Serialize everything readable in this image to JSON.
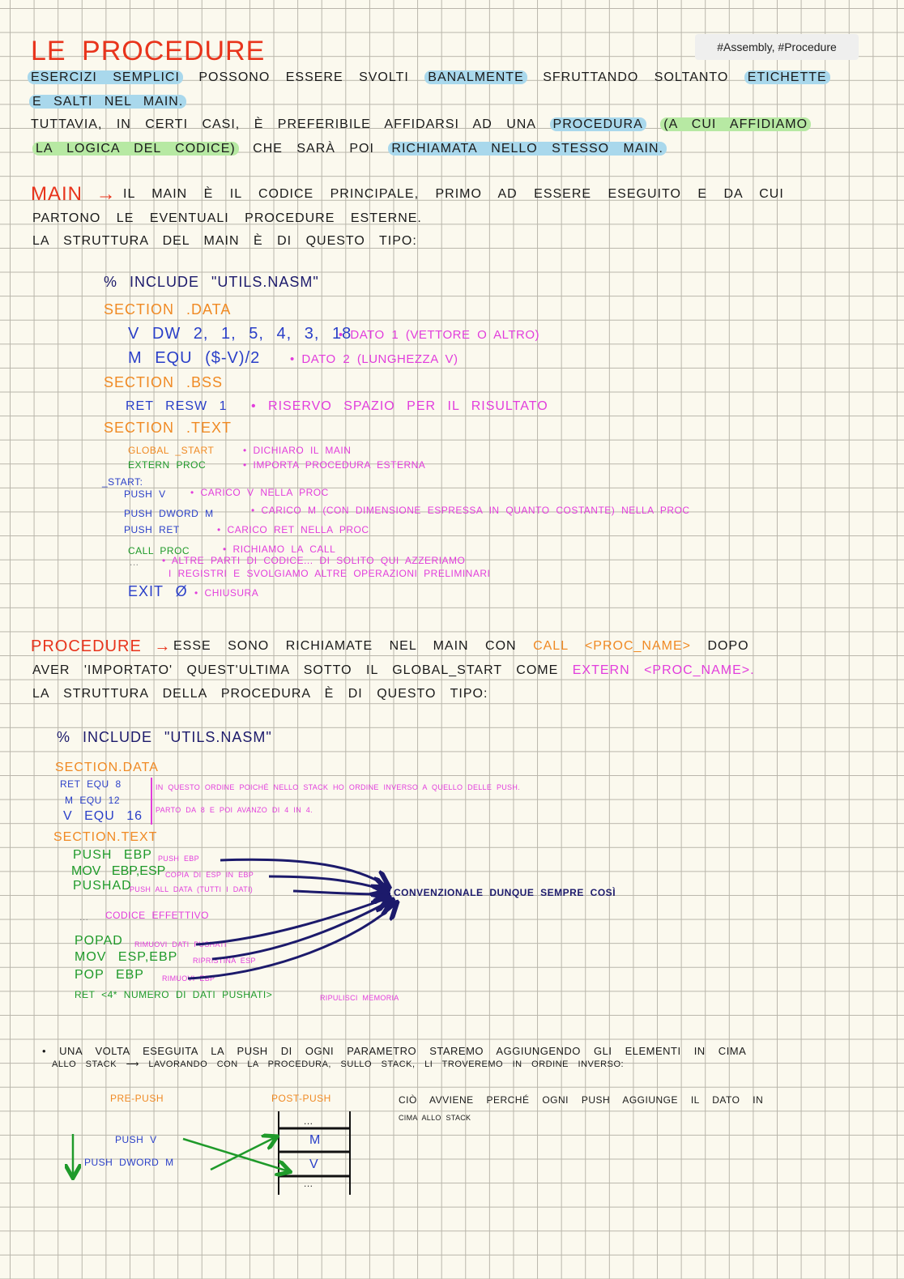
{
  "title": "LE PROCEDURE",
  "tags": "#Assembly, #Procedure",
  "intro": {
    "l1": {
      "a": "Esercizi semplici",
      "b": "possono essere svolti",
      "c": "banalmente",
      "d": "sfruttando soltanto",
      "e": "etichette"
    },
    "l2": "e salti nel main.",
    "l3": {
      "a": "Tuttavia, in certi casi, è preferibile affidarsi ad una",
      "b": "procedura",
      "c": "(a cui affidiamo"
    },
    "l4": {
      "a": "la logica del codice)",
      "b": "che sarà poi",
      "c": "richiamata nello stesso main."
    }
  },
  "main_section": {
    "heading": "MAIN →",
    "l1": "il main è il codice principale, primo ad essere eseguito e da cui",
    "l2": "partono le eventuali procedure esterne.",
    "l3": "la struttura del main è di questo tipo:",
    "code": {
      "include": "% include \"utils.nasm\"",
      "sec_data": "section .data",
      "v_dw": "v dw 2, 1, 5, 4, 3, 18",
      "v_dw_note": "• dato 1 (vettore o altro)",
      "m_equ": "m equ ($-v)/2",
      "m_equ_note": "• dato 2 (lunghezza v)",
      "sec_bss": "section .bss",
      "ret_resw": "ret resw 1",
      "ret_resw_note": "• riservo spazio per il risultato",
      "sec_text": "section .text",
      "global": "global _start",
      "global_note": "• dichiaro il main",
      "extern": "extern proc",
      "extern_note": "• importa procedura esterna",
      "start": "_start:",
      "push_v": "push v",
      "push_v_note": "• carico v nella proc",
      "push_m": "push dword m",
      "push_m_note": "• carico m (con dimensione espressa in quanto costante) nella proc",
      "push_ret": "push ret",
      "push_ret_note": "• carico ret nella proc",
      "call": "call proc",
      "call_note": "• richiamo la call",
      "dots": "...",
      "dots_note1": "• altre parti di codice... di solito qui azzeriamo",
      "dots_note2": "i registri e svolgiamo altre operazioni preliminari",
      "exit": "exit ø",
      "exit_note": "• chiusura"
    }
  },
  "proc_section": {
    "heading": "PROCEDURE →",
    "l1a": "esse sono richiamate nel main con",
    "l1b": "call <proc_name>",
    "l1c": "dopo",
    "l2a": "aver 'importato' quest'ultima sotto il global_start come",
    "l2b": "extern <proc_name>.",
    "l3": "la struttura della procedura è di questo tipo:",
    "code": {
      "include": "% include \"utils.nasm\"",
      "sec_data": "section.data",
      "ret_equ": "ret equ 8",
      "m_equ": "m equ 12",
      "v_equ": "v equ 16",
      "note1": "in questo ordine poiché nello stack ho ordine inverso a quello delle push.",
      "note2": "parto da 8 e poi avanzo di 4 in 4.",
      "sec_text": "section.text",
      "push_ebp": "push ebp",
      "push_ebp_note": "push ebp",
      "mov_ebp": "mov ebp,esp",
      "mov_ebp_note": "copia di esp in ebp",
      "pushad": "pushad",
      "pushad_note": "push all data (tutti i dati)",
      "dots": "...",
      "dots_note": "codice effettivo",
      "popad": "popad",
      "popad_note": "rimuovi dati pushati",
      "mov_esp": "mov esp,ebp",
      "mov_esp_note": "ripristina esp",
      "pop_ebp": "pop ebp",
      "pop_ebp_note": "rimuovi ebp",
      "ret": "ret <4* numero di dati pushati>",
      "ret_note": "ripulisci memoria",
      "conventional": "convenzionale dunque sempre così"
    }
  },
  "stack_section": {
    "l1": "• una volta eseguita la push di ogni parametro staremo aggiungendo gli elementi in cima",
    "l2": "allo stack ⟶ lavorando con la procedura, sullo stack, li troveremo in ordine inverso:",
    "pre_push": "pre-push",
    "post_push": "post-push",
    "push_v": "push v",
    "push_m": "push dword m",
    "cells": [
      "...",
      "m",
      "v",
      "..."
    ],
    "explanation1": "ciò avviene perché ogni push aggiunge il dato in",
    "explanation2": "cima allo stack"
  },
  "colors": {
    "title": "#e8341c",
    "section": "#f08a24",
    "code": "#2a3fc8",
    "note": "#e23ddc",
    "instr": "#1f9a2a",
    "arrow": "#1c1a6b",
    "highlight_blue": "#a9d8ec",
    "highlight_green": "#b7e9a3"
  }
}
